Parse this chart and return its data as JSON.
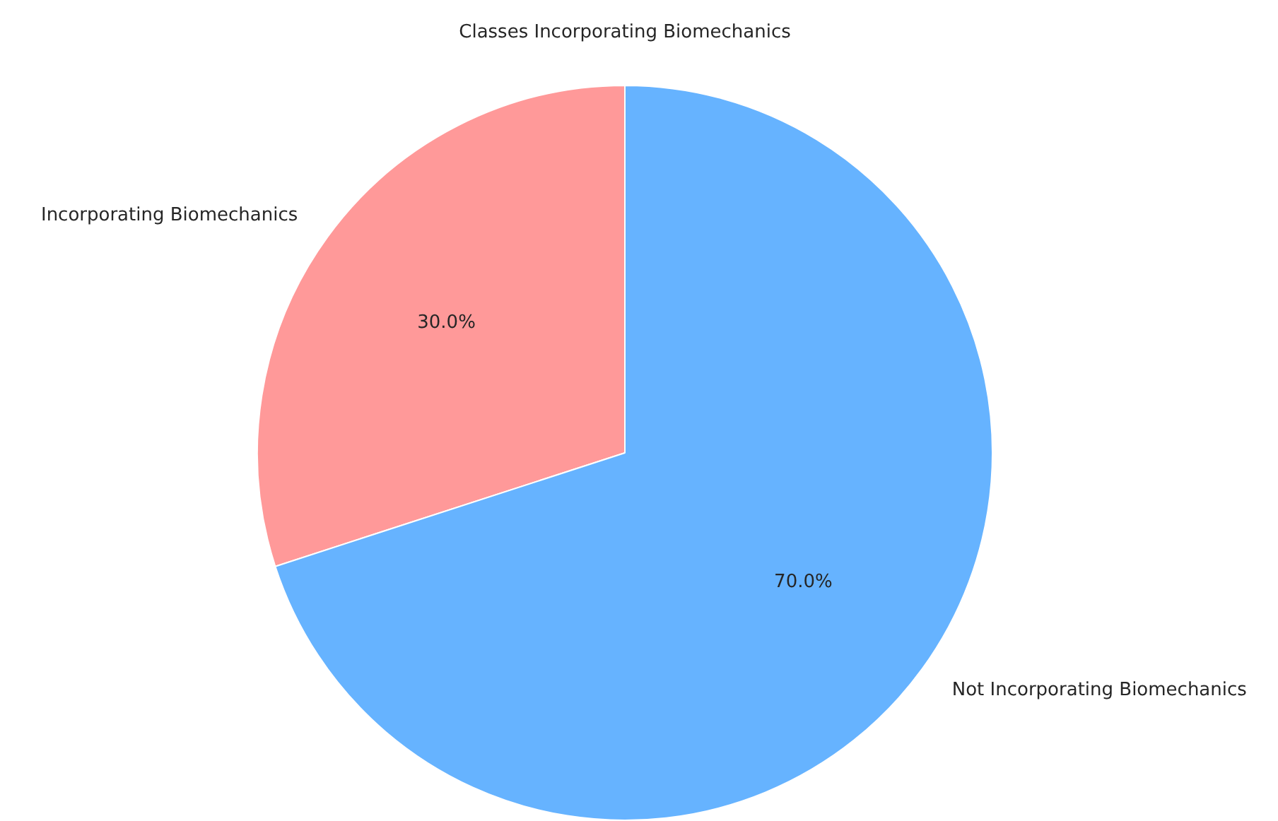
{
  "chart_data": {
    "type": "pie",
    "title": "Classes Incorporating Biomechanics",
    "categories": [
      "Incorporating Biomechanics",
      "Not Incorporating Biomechanics"
    ],
    "values": [
      30,
      70
    ],
    "colors": [
      "#ff9999",
      "#66b3ff"
    ],
    "value_labels": [
      "30.0%",
      "70.0%"
    ],
    "legend": false
  }
}
